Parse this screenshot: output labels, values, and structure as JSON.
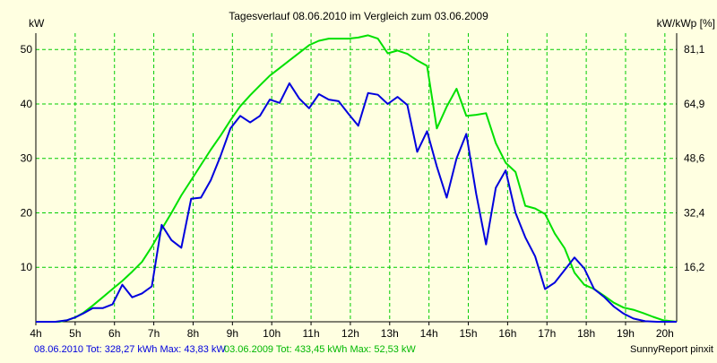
{
  "chart_data": {
    "type": "line",
    "title": "Tagesverlauf 08.06.2010 im Vergleich zum 03.06.2009",
    "ylabel_left": "kW",
    "ylabel_right": "kW/kWp [%]",
    "x_ticks": [
      "4h",
      "5h",
      "6h",
      "7h",
      "8h",
      "9h",
      "10h",
      "11h",
      "12h",
      "13h",
      "14h",
      "15h",
      "16h",
      "17h",
      "18h",
      "19h",
      "20h"
    ],
    "xlim": [
      4,
      20.3
    ],
    "ylim": [
      0,
      53
    ],
    "y_ticks_left": [
      "10",
      "20",
      "30",
      "40",
      "50"
    ],
    "y_ticks_right": [
      "16,2",
      "32,4",
      "48,6",
      "64,9",
      "81,1"
    ],
    "grid": true,
    "colors": {
      "background": "#ffffe1",
      "plot_bg": "#ffffe1",
      "grid": "#00cc00",
      "series_2010": "#0000dd",
      "series_2009": "#00e000"
    },
    "series": [
      {
        "name": "08.06.2010",
        "color": "#0000dd",
        "points": [
          [
            4.0,
            0
          ],
          [
            4.5,
            0
          ],
          [
            4.8,
            0.3
          ],
          [
            5.0,
            0.8
          ],
          [
            5.2,
            1.5
          ],
          [
            5.45,
            2.5
          ],
          [
            5.7,
            2.5
          ],
          [
            5.95,
            3.2
          ],
          [
            6.2,
            6.8
          ],
          [
            6.45,
            4.5
          ],
          [
            6.7,
            5.2
          ],
          [
            6.95,
            6.5
          ],
          [
            7.2,
            17.8
          ],
          [
            7.45,
            15.0
          ],
          [
            7.7,
            13.6
          ],
          [
            7.95,
            22.6
          ],
          [
            8.2,
            22.8
          ],
          [
            8.45,
            26.0
          ],
          [
            8.7,
            30.5
          ],
          [
            8.95,
            35.5
          ],
          [
            9.2,
            37.8
          ],
          [
            9.45,
            36.6
          ],
          [
            9.7,
            37.8
          ],
          [
            9.95,
            40.8
          ],
          [
            10.2,
            40.2
          ],
          [
            10.45,
            43.8
          ],
          [
            10.7,
            41.0
          ],
          [
            10.95,
            39.2
          ],
          [
            11.2,
            41.8
          ],
          [
            11.45,
            40.8
          ],
          [
            11.7,
            40.5
          ],
          [
            11.95,
            38.2
          ],
          [
            12.2,
            36.0
          ],
          [
            12.45,
            42.0
          ],
          [
            12.7,
            41.7
          ],
          [
            12.95,
            40.0
          ],
          [
            13.2,
            41.3
          ],
          [
            13.45,
            39.8
          ],
          [
            13.7,
            31.2
          ],
          [
            13.95,
            35.0
          ],
          [
            14.2,
            28.5
          ],
          [
            14.45,
            22.8
          ],
          [
            14.7,
            30.0
          ],
          [
            14.95,
            34.5
          ],
          [
            15.2,
            23.5
          ],
          [
            15.45,
            14.2
          ],
          [
            15.7,
            24.6
          ],
          [
            15.95,
            27.8
          ],
          [
            16.2,
            20.0
          ],
          [
            16.45,
            15.5
          ],
          [
            16.7,
            12.0
          ],
          [
            16.95,
            6.0
          ],
          [
            17.2,
            7.2
          ],
          [
            17.45,
            9.5
          ],
          [
            17.7,
            11.8
          ],
          [
            17.95,
            9.8
          ],
          [
            18.2,
            6.0
          ],
          [
            18.45,
            4.6
          ],
          [
            18.7,
            2.8
          ],
          [
            18.95,
            1.5
          ],
          [
            19.2,
            0.6
          ],
          [
            19.5,
            0.1
          ],
          [
            19.8,
            0
          ],
          [
            20.3,
            0
          ]
        ]
      },
      {
        "name": "03.06.2009",
        "color": "#00e000",
        "points": [
          [
            4.0,
            0
          ],
          [
            4.6,
            0
          ],
          [
            4.8,
            0.3
          ],
          [
            5.0,
            0.8
          ],
          [
            5.2,
            1.6
          ],
          [
            5.45,
            3.0
          ],
          [
            5.7,
            4.5
          ],
          [
            5.95,
            6.0
          ],
          [
            6.2,
            7.5
          ],
          [
            6.45,
            9.2
          ],
          [
            6.7,
            11.0
          ],
          [
            6.95,
            13.8
          ],
          [
            7.2,
            17.0
          ],
          [
            7.45,
            20.0
          ],
          [
            7.7,
            23.2
          ],
          [
            7.95,
            26.0
          ],
          [
            8.2,
            28.8
          ],
          [
            8.45,
            31.6
          ],
          [
            8.7,
            34.2
          ],
          [
            8.95,
            37.0
          ],
          [
            9.2,
            39.6
          ],
          [
            9.45,
            41.6
          ],
          [
            9.7,
            43.4
          ],
          [
            9.95,
            45.2
          ],
          [
            10.2,
            46.6
          ],
          [
            10.45,
            48.0
          ],
          [
            10.7,
            49.4
          ],
          [
            10.95,
            50.8
          ],
          [
            11.2,
            51.6
          ],
          [
            11.45,
            52.0
          ],
          [
            11.7,
            52.0
          ],
          [
            11.95,
            52.0
          ],
          [
            12.2,
            52.2
          ],
          [
            12.45,
            52.6
          ],
          [
            12.7,
            52.0
          ],
          [
            12.95,
            49.3
          ],
          [
            13.2,
            49.8
          ],
          [
            13.45,
            49.2
          ],
          [
            13.7,
            48.0
          ],
          [
            13.95,
            47.0
          ],
          [
            14.2,
            35.5
          ],
          [
            14.45,
            39.5
          ],
          [
            14.7,
            42.8
          ],
          [
            14.95,
            37.8
          ],
          [
            15.2,
            38.0
          ],
          [
            15.45,
            38.3
          ],
          [
            15.7,
            32.8
          ],
          [
            15.95,
            29.2
          ],
          [
            16.2,
            27.5
          ],
          [
            16.45,
            21.3
          ],
          [
            16.7,
            20.8
          ],
          [
            16.95,
            19.8
          ],
          [
            17.2,
            16.2
          ],
          [
            17.45,
            13.5
          ],
          [
            17.7,
            9.0
          ],
          [
            17.95,
            6.8
          ],
          [
            18.2,
            6.0
          ],
          [
            18.45,
            4.8
          ],
          [
            18.7,
            3.5
          ],
          [
            18.95,
            2.6
          ],
          [
            19.2,
            2.2
          ],
          [
            19.45,
            1.6
          ],
          [
            19.7,
            0.9
          ],
          [
            19.95,
            0.3
          ],
          [
            20.3,
            0
          ]
        ]
      }
    ],
    "footer_2010": "08.06.2010 Tot: 328,27 kWh Max: 43,83 kW",
    "footer_2009": "03.06.2009 Tot: 433,45 kWh Max: 52,53 kW",
    "credit": "SunnyReport pinxit"
  }
}
